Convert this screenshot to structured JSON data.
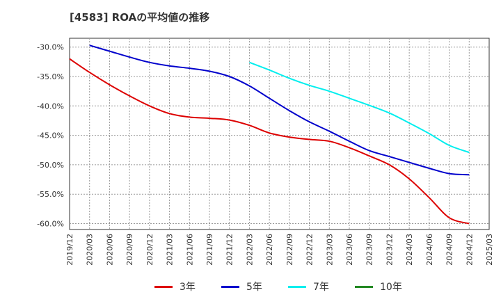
{
  "title": "[4583]  ROAの平均値の推移",
  "chart_data": {
    "type": "line",
    "ylim": [
      -61,
      -28.5
    ],
    "yticks": [
      -30,
      -35,
      -40,
      -45,
      -50,
      -55,
      -60
    ],
    "ytick_labels": [
      "-30.0%",
      "-35.0%",
      "-40.0%",
      "-45.0%",
      "-50.0%",
      "-55.0%",
      "-60.0%"
    ],
    "x_categories": [
      "2019/12",
      "2020/03",
      "2020/06",
      "2020/09",
      "2020/12",
      "2021/03",
      "2021/06",
      "2021/09",
      "2021/12",
      "2022/03",
      "2022/06",
      "2022/09",
      "2022/12",
      "2023/03",
      "2023/06",
      "2023/09",
      "2023/12",
      "2024/03",
      "2024/06",
      "2024/09",
      "2024/12",
      "2025/03"
    ],
    "grid": true,
    "legend_position": "bottom",
    "series": [
      {
        "name": "3年",
        "color": "#dd0000",
        "x": [
          "2019/12",
          "2020/03",
          "2020/06",
          "2020/09",
          "2020/12",
          "2021/03",
          "2021/06",
          "2021/09",
          "2021/12",
          "2022/03",
          "2022/06",
          "2022/09",
          "2022/12",
          "2023/03",
          "2023/06",
          "2023/09",
          "2023/12",
          "2024/03",
          "2024/06",
          "2024/09",
          "2024/12"
        ],
        "values": [
          -32.0,
          -34.3,
          -36.4,
          -38.3,
          -40.0,
          -41.3,
          -41.9,
          -42.1,
          -42.4,
          -43.3,
          -44.6,
          -45.3,
          -45.7,
          -46.0,
          -47.1,
          -48.5,
          -50.0,
          -52.4,
          -55.6,
          -59.0,
          -60.0
        ]
      },
      {
        "name": "5年",
        "color": "#0000cc",
        "x": [
          "2020/03",
          "2020/06",
          "2020/09",
          "2020/12",
          "2021/03",
          "2021/06",
          "2021/09",
          "2021/12",
          "2022/03",
          "2022/06",
          "2022/09",
          "2022/12",
          "2023/03",
          "2023/06",
          "2023/09",
          "2023/12",
          "2024/03",
          "2024/06",
          "2024/09",
          "2024/12"
        ],
        "values": [
          -29.7,
          -30.7,
          -31.7,
          -32.6,
          -33.2,
          -33.6,
          -34.1,
          -35.0,
          -36.6,
          -38.7,
          -40.8,
          -42.7,
          -44.3,
          -46.0,
          -47.6,
          -48.6,
          -49.6,
          -50.6,
          -51.5,
          -51.7
        ]
      },
      {
        "name": "7年",
        "color": "#00eeee",
        "x": [
          "2022/03",
          "2022/06",
          "2022/09",
          "2022/12",
          "2023/03",
          "2023/06",
          "2023/09",
          "2023/12",
          "2024/03",
          "2024/06",
          "2024/09",
          "2024/12"
        ],
        "values": [
          -32.6,
          -33.9,
          -35.3,
          -36.5,
          -37.5,
          -38.7,
          -39.9,
          -41.2,
          -42.9,
          -44.7,
          -46.7,
          -47.9
        ]
      },
      {
        "name": "10年",
        "color": "#228822",
        "x": [],
        "values": []
      }
    ]
  }
}
